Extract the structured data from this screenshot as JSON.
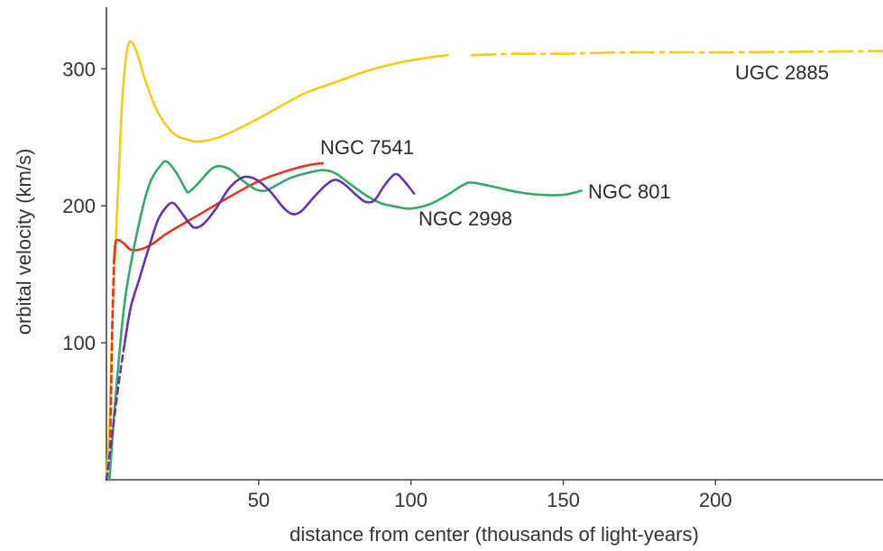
{
  "chart_data": {
    "type": "line",
    "title": "",
    "xlabel": "distance from center (thousands of light-years)",
    "ylabel": "orbital velocity (km/s)",
    "xlim": [
      0,
      255
    ],
    "ylim": [
      0,
      345
    ],
    "x_ticks": [
      50,
      100,
      150,
      200
    ],
    "y_ticks": [
      100,
      200,
      300
    ],
    "grid": false,
    "legend": "none",
    "series": [
      {
        "name": "UGC 2885",
        "color": "#f2cc1a",
        "points": [
          [
            0,
            0
          ],
          [
            1,
            40
          ],
          [
            2,
            120
          ],
          [
            4,
            220
          ],
          [
            5,
            270
          ],
          [
            6,
            300
          ],
          [
            7,
            316
          ],
          [
            8,
            320
          ],
          [
            10,
            312
          ],
          [
            13,
            290
          ],
          [
            17,
            268
          ],
          [
            22,
            253
          ],
          [
            27,
            248
          ],
          [
            31,
            247
          ],
          [
            37,
            250
          ],
          [
            45,
            258
          ],
          [
            55,
            270
          ],
          [
            65,
            282
          ],
          [
            75,
            290
          ],
          [
            85,
            298
          ],
          [
            95,
            304
          ],
          [
            105,
            308
          ],
          [
            112,
            310
          ],
          [
            120,
            310
          ],
          [
            135,
            311
          ],
          [
            150,
            311
          ],
          [
            170,
            312
          ],
          [
            200,
            312
          ],
          [
            230,
            312.5
          ],
          [
            255,
            313
          ]
        ],
        "dashed_from_x": 114
      },
      {
        "name": "NGC 7541",
        "color": "#e63322",
        "points": [
          [
            1,
            0
          ],
          [
            1.5,
            60
          ],
          [
            2,
            120
          ],
          [
            2.5,
            160
          ],
          [
            3,
            173
          ],
          [
            4,
            175
          ],
          [
            6,
            172
          ],
          [
            8,
            168
          ],
          [
            11,
            168
          ],
          [
            15,
            172
          ],
          [
            20,
            180
          ],
          [
            30,
            193
          ],
          [
            40,
            206
          ],
          [
            50,
            218
          ],
          [
            60,
            226
          ],
          [
            67,
            230
          ],
          [
            71,
            231
          ]
        ],
        "dashed_until_x": 2.5
      },
      {
        "name": "NGC 801",
        "color": "#33aa66",
        "points": [
          [
            1,
            0
          ],
          [
            3,
            60
          ],
          [
            6,
            130
          ],
          [
            10,
            180
          ],
          [
            14,
            215
          ],
          [
            18,
            230
          ],
          [
            20,
            232
          ],
          [
            23,
            224
          ],
          [
            26,
            212
          ],
          [
            27,
            210
          ],
          [
            30,
            216
          ],
          [
            34,
            226
          ],
          [
            37,
            229
          ],
          [
            41,
            226
          ],
          [
            45,
            218
          ],
          [
            49,
            212
          ],
          [
            52,
            211
          ],
          [
            55,
            214
          ],
          [
            60,
            220
          ],
          [
            66,
            224
          ],
          [
            71,
            226
          ],
          [
            75,
            224
          ],
          [
            80,
            216
          ],
          [
            85,
            208
          ],
          [
            90,
            202
          ],
          [
            96,
            199
          ],
          [
            100,
            198
          ],
          [
            106,
            201
          ],
          [
            112,
            208
          ],
          [
            117,
            215
          ],
          [
            120,
            217
          ],
          [
            127,
            214
          ],
          [
            135,
            210
          ],
          [
            143,
            208
          ],
          [
            150,
            208
          ],
          [
            156,
            211
          ]
        ]
      },
      {
        "name": "NGC 2998",
        "color": "#6633aa",
        "points": [
          [
            0,
            0
          ],
          [
            2,
            35
          ],
          [
            4,
            70
          ],
          [
            6,
            100
          ],
          [
            8,
            126
          ],
          [
            11,
            148
          ],
          [
            14,
            170
          ],
          [
            17,
            190
          ],
          [
            20,
            200
          ],
          [
            22,
            202
          ],
          [
            24,
            197
          ],
          [
            27,
            188
          ],
          [
            29,
            184
          ],
          [
            32,
            187
          ],
          [
            36,
            198
          ],
          [
            40,
            212
          ],
          [
            44,
            220
          ],
          [
            47,
            221
          ],
          [
            50,
            218
          ],
          [
            54,
            210
          ],
          [
            58,
            199
          ],
          [
            61,
            194
          ],
          [
            64,
            196
          ],
          [
            68,
            206
          ],
          [
            72,
            215
          ],
          [
            75,
            219
          ],
          [
            78,
            216
          ],
          [
            82,
            208
          ],
          [
            85,
            203
          ],
          [
            88,
            204
          ],
          [
            91,
            214
          ],
          [
            94,
            222
          ],
          [
            95.5,
            223
          ],
          [
            97,
            220
          ],
          [
            100,
            212
          ],
          [
            101,
            209
          ]
        ],
        "dashed_until_x": 6
      }
    ]
  }
}
